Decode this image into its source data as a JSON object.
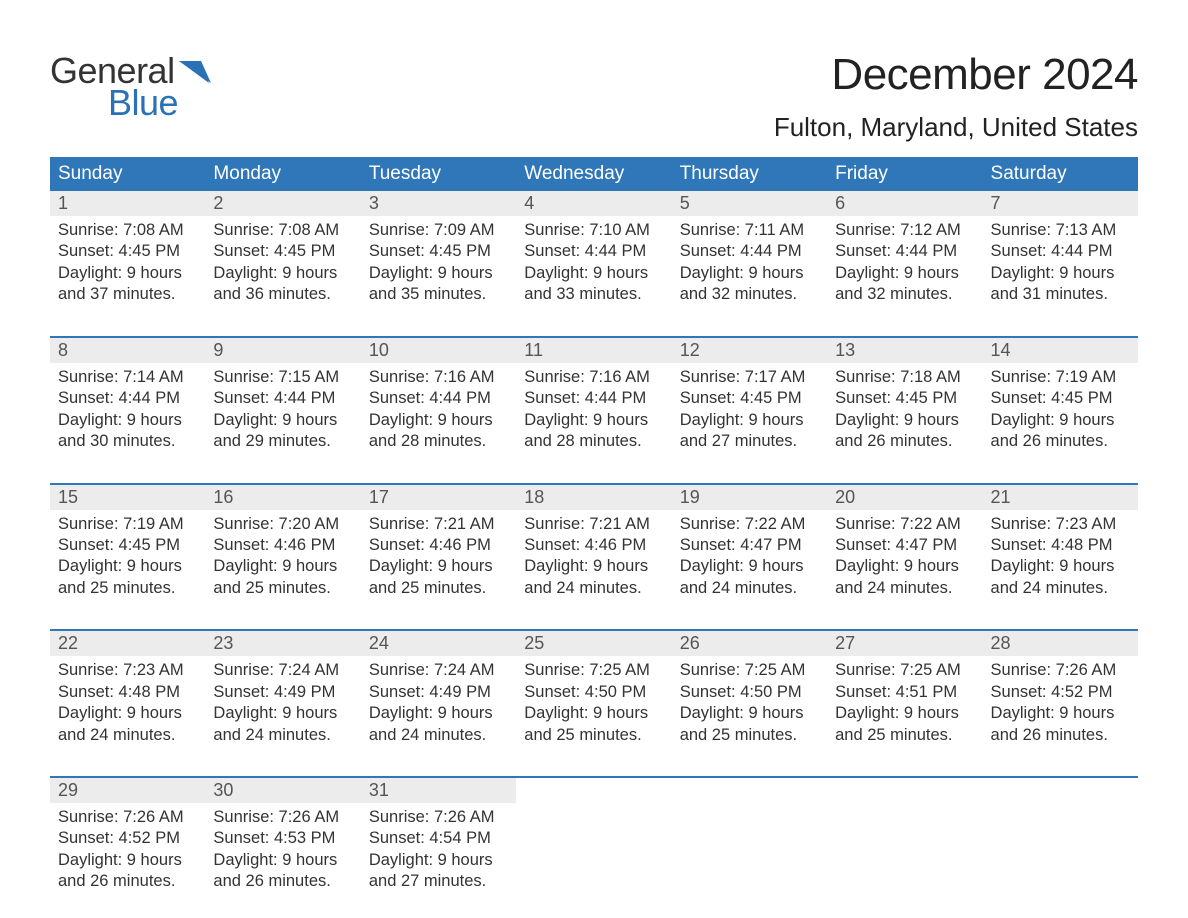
{
  "logo": {
    "line1": "General",
    "line2": "Blue"
  },
  "title": "December 2024",
  "location": "Fulton, Maryland, United States",
  "colors": {
    "header_bg": "#3077b9",
    "header_text": "#ffffff",
    "daynum_bg": "#ececec",
    "daynum_text": "#555555",
    "body_text": "#333333",
    "accent": "#2a72b5",
    "page_bg": "#ffffff"
  },
  "typography": {
    "title_fontsize": 44,
    "location_fontsize": 26,
    "dayheader_fontsize": 19,
    "daynum_fontsize": 18,
    "cell_fontsize": 16.5
  },
  "day_headers": [
    "Sunday",
    "Monday",
    "Tuesday",
    "Wednesday",
    "Thursday",
    "Friday",
    "Saturday"
  ],
  "weeks": [
    [
      {
        "num": "1",
        "sunrise": "Sunrise: 7:08 AM",
        "sunset": "Sunset: 4:45 PM",
        "dl1": "Daylight: 9 hours",
        "dl2": "and 37 minutes."
      },
      {
        "num": "2",
        "sunrise": "Sunrise: 7:08 AM",
        "sunset": "Sunset: 4:45 PM",
        "dl1": "Daylight: 9 hours",
        "dl2": "and 36 minutes."
      },
      {
        "num": "3",
        "sunrise": "Sunrise: 7:09 AM",
        "sunset": "Sunset: 4:45 PM",
        "dl1": "Daylight: 9 hours",
        "dl2": "and 35 minutes."
      },
      {
        "num": "4",
        "sunrise": "Sunrise: 7:10 AM",
        "sunset": "Sunset: 4:44 PM",
        "dl1": "Daylight: 9 hours",
        "dl2": "and 33 minutes."
      },
      {
        "num": "5",
        "sunrise": "Sunrise: 7:11 AM",
        "sunset": "Sunset: 4:44 PM",
        "dl1": "Daylight: 9 hours",
        "dl2": "and 32 minutes."
      },
      {
        "num": "6",
        "sunrise": "Sunrise: 7:12 AM",
        "sunset": "Sunset: 4:44 PM",
        "dl1": "Daylight: 9 hours",
        "dl2": "and 32 minutes."
      },
      {
        "num": "7",
        "sunrise": "Sunrise: 7:13 AM",
        "sunset": "Sunset: 4:44 PM",
        "dl1": "Daylight: 9 hours",
        "dl2": "and 31 minutes."
      }
    ],
    [
      {
        "num": "8",
        "sunrise": "Sunrise: 7:14 AM",
        "sunset": "Sunset: 4:44 PM",
        "dl1": "Daylight: 9 hours",
        "dl2": "and 30 minutes."
      },
      {
        "num": "9",
        "sunrise": "Sunrise: 7:15 AM",
        "sunset": "Sunset: 4:44 PM",
        "dl1": "Daylight: 9 hours",
        "dl2": "and 29 minutes."
      },
      {
        "num": "10",
        "sunrise": "Sunrise: 7:16 AM",
        "sunset": "Sunset: 4:44 PM",
        "dl1": "Daylight: 9 hours",
        "dl2": "and 28 minutes."
      },
      {
        "num": "11",
        "sunrise": "Sunrise: 7:16 AM",
        "sunset": "Sunset: 4:44 PM",
        "dl1": "Daylight: 9 hours",
        "dl2": "and 28 minutes."
      },
      {
        "num": "12",
        "sunrise": "Sunrise: 7:17 AM",
        "sunset": "Sunset: 4:45 PM",
        "dl1": "Daylight: 9 hours",
        "dl2": "and 27 minutes."
      },
      {
        "num": "13",
        "sunrise": "Sunrise: 7:18 AM",
        "sunset": "Sunset: 4:45 PM",
        "dl1": "Daylight: 9 hours",
        "dl2": "and 26 minutes."
      },
      {
        "num": "14",
        "sunrise": "Sunrise: 7:19 AM",
        "sunset": "Sunset: 4:45 PM",
        "dl1": "Daylight: 9 hours",
        "dl2": "and 26 minutes."
      }
    ],
    [
      {
        "num": "15",
        "sunrise": "Sunrise: 7:19 AM",
        "sunset": "Sunset: 4:45 PM",
        "dl1": "Daylight: 9 hours",
        "dl2": "and 25 minutes."
      },
      {
        "num": "16",
        "sunrise": "Sunrise: 7:20 AM",
        "sunset": "Sunset: 4:46 PM",
        "dl1": "Daylight: 9 hours",
        "dl2": "and 25 minutes."
      },
      {
        "num": "17",
        "sunrise": "Sunrise: 7:21 AM",
        "sunset": "Sunset: 4:46 PM",
        "dl1": "Daylight: 9 hours",
        "dl2": "and 25 minutes."
      },
      {
        "num": "18",
        "sunrise": "Sunrise: 7:21 AM",
        "sunset": "Sunset: 4:46 PM",
        "dl1": "Daylight: 9 hours",
        "dl2": "and 24 minutes."
      },
      {
        "num": "19",
        "sunrise": "Sunrise: 7:22 AM",
        "sunset": "Sunset: 4:47 PM",
        "dl1": "Daylight: 9 hours",
        "dl2": "and 24 minutes."
      },
      {
        "num": "20",
        "sunrise": "Sunrise: 7:22 AM",
        "sunset": "Sunset: 4:47 PM",
        "dl1": "Daylight: 9 hours",
        "dl2": "and 24 minutes."
      },
      {
        "num": "21",
        "sunrise": "Sunrise: 7:23 AM",
        "sunset": "Sunset: 4:48 PM",
        "dl1": "Daylight: 9 hours",
        "dl2": "and 24 minutes."
      }
    ],
    [
      {
        "num": "22",
        "sunrise": "Sunrise: 7:23 AM",
        "sunset": "Sunset: 4:48 PM",
        "dl1": "Daylight: 9 hours",
        "dl2": "and 24 minutes."
      },
      {
        "num": "23",
        "sunrise": "Sunrise: 7:24 AM",
        "sunset": "Sunset: 4:49 PM",
        "dl1": "Daylight: 9 hours",
        "dl2": "and 24 minutes."
      },
      {
        "num": "24",
        "sunrise": "Sunrise: 7:24 AM",
        "sunset": "Sunset: 4:49 PM",
        "dl1": "Daylight: 9 hours",
        "dl2": "and 24 minutes."
      },
      {
        "num": "25",
        "sunrise": "Sunrise: 7:25 AM",
        "sunset": "Sunset: 4:50 PM",
        "dl1": "Daylight: 9 hours",
        "dl2": "and 25 minutes."
      },
      {
        "num": "26",
        "sunrise": "Sunrise: 7:25 AM",
        "sunset": "Sunset: 4:50 PM",
        "dl1": "Daylight: 9 hours",
        "dl2": "and 25 minutes."
      },
      {
        "num": "27",
        "sunrise": "Sunrise: 7:25 AM",
        "sunset": "Sunset: 4:51 PM",
        "dl1": "Daylight: 9 hours",
        "dl2": "and 25 minutes."
      },
      {
        "num": "28",
        "sunrise": "Sunrise: 7:26 AM",
        "sunset": "Sunset: 4:52 PM",
        "dl1": "Daylight: 9 hours",
        "dl2": "and 26 minutes."
      }
    ],
    [
      {
        "num": "29",
        "sunrise": "Sunrise: 7:26 AM",
        "sunset": "Sunset: 4:52 PM",
        "dl1": "Daylight: 9 hours",
        "dl2": "and 26 minutes."
      },
      {
        "num": "30",
        "sunrise": "Sunrise: 7:26 AM",
        "sunset": "Sunset: 4:53 PM",
        "dl1": "Daylight: 9 hours",
        "dl2": "and 26 minutes."
      },
      {
        "num": "31",
        "sunrise": "Sunrise: 7:26 AM",
        "sunset": "Sunset: 4:54 PM",
        "dl1": "Daylight: 9 hours",
        "dl2": "and 27 minutes."
      },
      null,
      null,
      null,
      null
    ]
  ]
}
